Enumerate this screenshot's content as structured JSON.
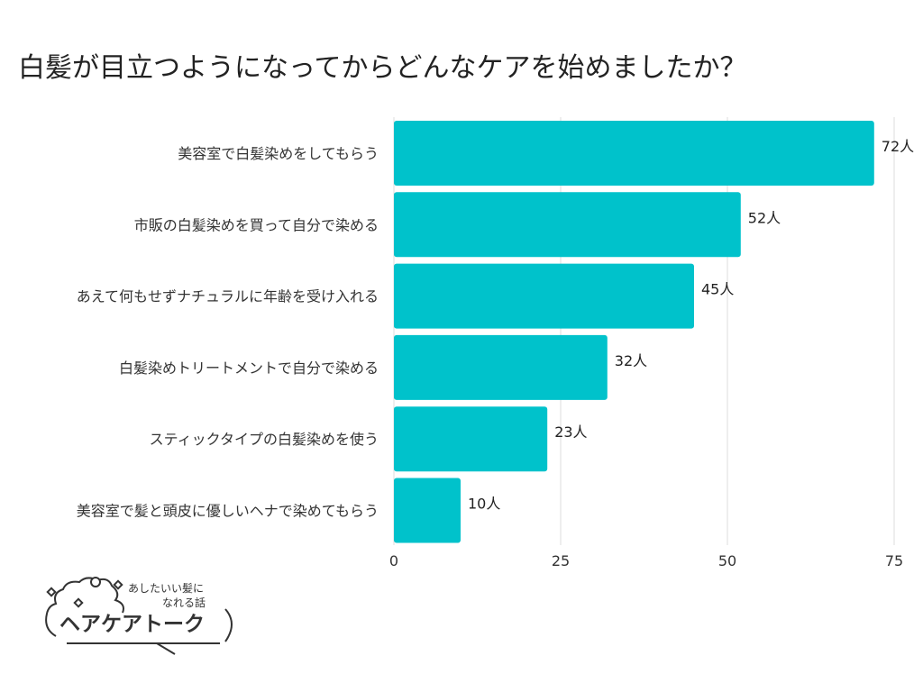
{
  "chart_data": {
    "type": "bar",
    "orientation": "horizontal",
    "title": "白髪が目立つようになってからどんなケアを始めましたか？",
    "categories": [
      "美容室で白髪染めをしてもらう",
      "市販の白髪染めを買って自分で染める",
      "あえて何もせずナチュラルに年齢を受け入れる",
      "白髪染めトリートメントで自分で染める",
      "スティックタイプの白髪染めを使う",
      "美容室で髪と頭皮に優しいヘナで染めてもらう"
    ],
    "values": [
      72,
      52,
      45,
      32,
      23,
      10
    ],
    "value_labels": [
      "72人",
      "52人",
      "45人",
      "32人",
      "23人",
      "10人"
    ],
    "xlim": [
      0,
      75
    ],
    "xticks": [
      "0",
      "25",
      "50",
      "75"
    ],
    "grid": true,
    "bar_color": "#00C2CB"
  },
  "logo": {
    "tagline_1": "あしたいい髪に",
    "tagline_2": "なれる話",
    "name": "ヘアケアトーク"
  }
}
